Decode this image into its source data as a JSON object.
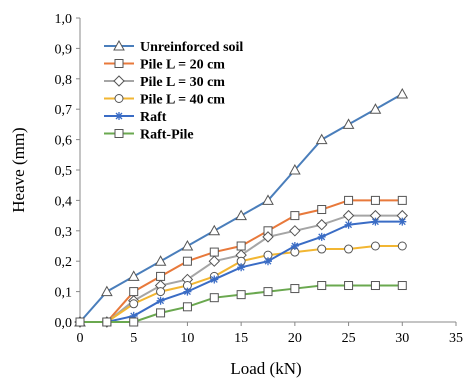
{
  "chart_data": {
    "type": "line",
    "xlabel": "Load (kN)",
    "ylabel": "Heave (mm)",
    "xlim": [
      0,
      35
    ],
    "ylim": [
      0,
      1.0
    ],
    "xticks": [
      0,
      5,
      10,
      15,
      20,
      25,
      30,
      35
    ],
    "yticks": [
      0,
      0.1,
      0.2,
      0.3,
      0.4,
      0.5,
      0.6,
      0.7,
      0.8,
      0.9,
      1.0
    ],
    "xtick_labels": [
      "0",
      "5",
      "10",
      "15",
      "20",
      "25",
      "30",
      "35"
    ],
    "ytick_labels": [
      "0,0",
      "0,1",
      "0,2",
      "0,3",
      "0,4",
      "0,5",
      "0,6",
      "0,7",
      "0,8",
      "0,9",
      "1,0"
    ],
    "grid": false,
    "legend_position": "top-left",
    "series": [
      {
        "name": "Unreinforced soil",
        "color": "#4a7ebb",
        "marker": "triangle",
        "x": [
          0,
          2.5,
          5,
          7.5,
          10,
          12.5,
          15,
          17.5,
          20,
          22.5,
          25,
          27.5,
          30
        ],
        "y": [
          0.0,
          0.1,
          0.15,
          0.2,
          0.25,
          0.3,
          0.35,
          0.4,
          0.5,
          0.6,
          0.65,
          0.7,
          0.75
        ]
      },
      {
        "name": "Pile L = 20 cm",
        "color": "#e8793b",
        "marker": "square",
        "x": [
          0,
          2.5,
          5,
          7.5,
          10,
          12.5,
          15,
          17.5,
          20,
          22.5,
          25,
          27.5,
          30
        ],
        "y": [
          0.0,
          0.0,
          0.1,
          0.15,
          0.2,
          0.23,
          0.25,
          0.3,
          0.35,
          0.37,
          0.4,
          0.4,
          0.4
        ]
      },
      {
        "name": "Pile L = 30 cm",
        "color": "#a5a5a5",
        "marker": "diamond",
        "x": [
          0,
          2.5,
          5,
          7.5,
          10,
          12.5,
          15,
          17.5,
          20,
          22.5,
          25,
          27.5,
          30
        ],
        "y": [
          0.0,
          0.0,
          0.07,
          0.12,
          0.14,
          0.2,
          0.22,
          0.28,
          0.3,
          0.32,
          0.35,
          0.35,
          0.35
        ]
      },
      {
        "name": "Pile L = 40 cm",
        "color": "#f2b632",
        "marker": "circle",
        "x": [
          0,
          2.5,
          5,
          7.5,
          10,
          12.5,
          15,
          17.5,
          20,
          22.5,
          25,
          27.5,
          30
        ],
        "y": [
          0.0,
          0.0,
          0.06,
          0.1,
          0.12,
          0.15,
          0.2,
          0.22,
          0.23,
          0.24,
          0.24,
          0.25,
          0.25
        ]
      },
      {
        "name": "Raft",
        "color": "#3a6cc5",
        "marker": "star",
        "x": [
          0,
          2.5,
          5,
          7.5,
          10,
          12.5,
          15,
          17.5,
          20,
          22.5,
          25,
          27.5,
          30
        ],
        "y": [
          0.0,
          0.0,
          0.02,
          0.07,
          0.1,
          0.14,
          0.18,
          0.2,
          0.25,
          0.28,
          0.32,
          0.33,
          0.33
        ]
      },
      {
        "name": "Raft-Pile",
        "color": "#6aa84f",
        "marker": "square",
        "x": [
          0,
          2.5,
          5,
          7.5,
          10,
          12.5,
          15,
          17.5,
          20,
          22.5,
          25,
          27.5,
          30
        ],
        "y": [
          0.0,
          0.0,
          0.0,
          0.03,
          0.05,
          0.08,
          0.09,
          0.1,
          0.11,
          0.12,
          0.12,
          0.12,
          0.12
        ]
      }
    ]
  }
}
